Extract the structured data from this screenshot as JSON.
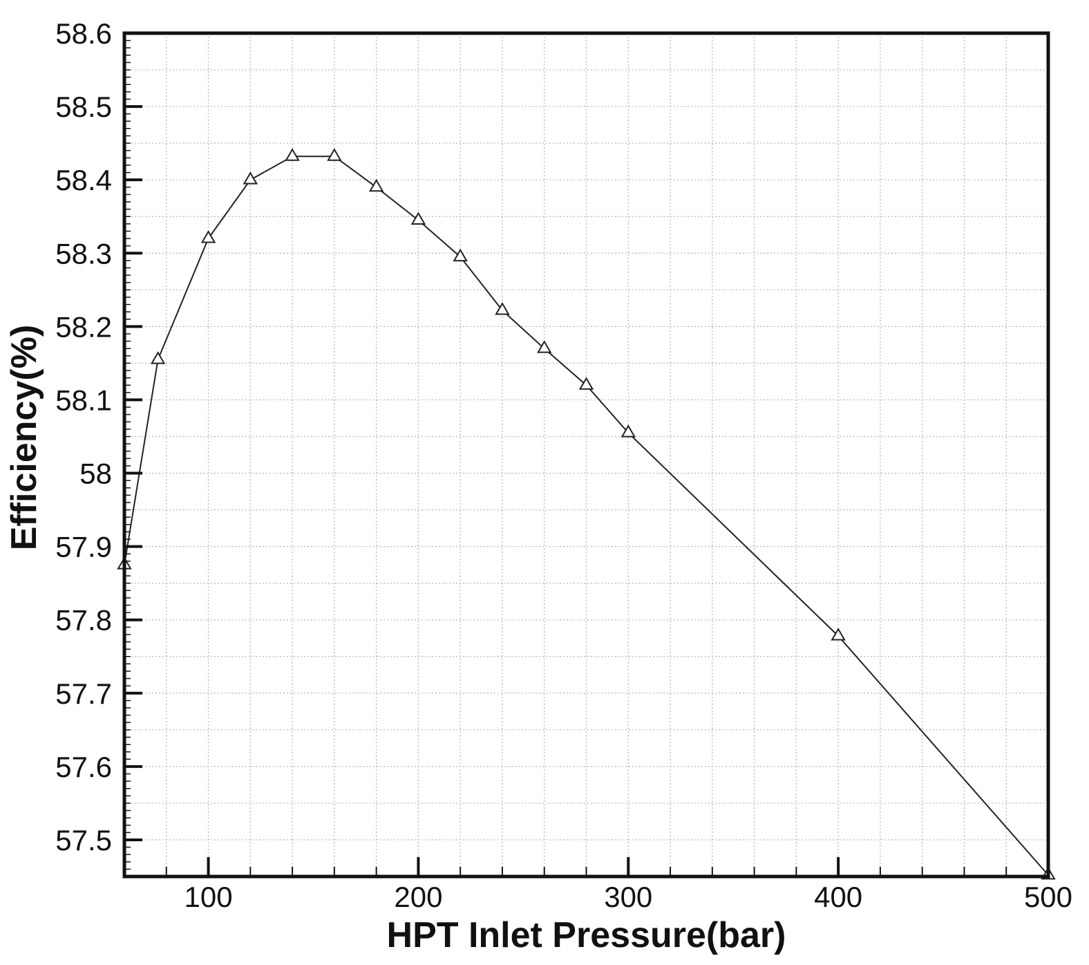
{
  "chart_data": {
    "type": "line",
    "title": "",
    "xlabel": "HPT Inlet Pressure(bar)",
    "ylabel": "Efficiency(%)",
    "xlim": [
      60,
      500
    ],
    "ylim": [
      57.45,
      58.6
    ],
    "x_ticks": [
      100,
      200,
      300,
      400,
      500
    ],
    "x_tick_labels": [
      "100",
      "200",
      "300",
      "400",
      "500"
    ],
    "y_ticks": [
      57.5,
      57.6,
      57.7,
      57.8,
      57.9,
      58.0,
      58.1,
      58.2,
      58.3,
      58.4,
      58.5,
      58.6
    ],
    "y_tick_labels": [
      "57.5",
      "57.6",
      "57.7",
      "57.8",
      "57.9",
      "58",
      "58.1",
      "58.2",
      "58.3",
      "58.4",
      "58.5",
      "58.6"
    ],
    "grid": true,
    "marker": "triangle",
    "line_color": "#222222",
    "series": [
      {
        "x": [
          60,
          76,
          100,
          120,
          140,
          160,
          180,
          200,
          220,
          240,
          260,
          280,
          300,
          400,
          500
        ],
        "y": [
          57.875,
          58.155,
          58.32,
          58.4,
          58.432,
          58.432,
          58.39,
          58.345,
          58.295,
          58.222,
          58.17,
          58.12,
          58.055,
          57.778,
          57.452
        ]
      }
    ]
  }
}
